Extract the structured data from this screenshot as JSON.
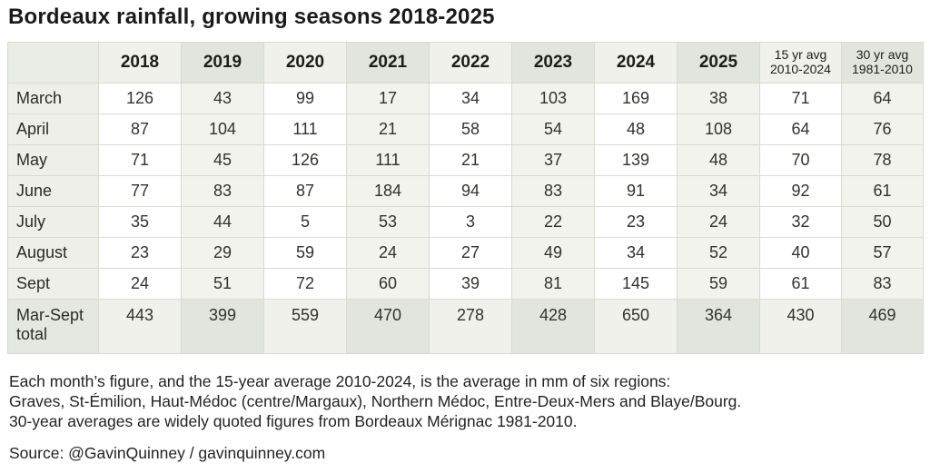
{
  "title": "Bordeaux rainfall, growing seasons 2018-2025",
  "chart_data": {
    "type": "table",
    "title": "Bordeaux rainfall, growing seasons 2018-2025",
    "units": "mm",
    "columns": [
      {
        "label": "",
        "type": "label"
      },
      {
        "label": "2018",
        "type": "year"
      },
      {
        "label": "2019",
        "type": "year"
      },
      {
        "label": "2020",
        "type": "year"
      },
      {
        "label": "2021",
        "type": "year"
      },
      {
        "label": "2022",
        "type": "year"
      },
      {
        "label": "2023",
        "type": "year"
      },
      {
        "label": "2024",
        "type": "year"
      },
      {
        "label": "2025",
        "type": "year"
      },
      {
        "label": "15 yr avg",
        "sublabel": "2010-2024",
        "type": "avg"
      },
      {
        "label": "30 yr avg",
        "sublabel": "1981-2010",
        "type": "avg"
      }
    ],
    "rows": [
      {
        "label": "March",
        "values": [
          126,
          43,
          99,
          17,
          34,
          103,
          169,
          38,
          71,
          64
        ]
      },
      {
        "label": "April",
        "values": [
          87,
          104,
          111,
          21,
          58,
          54,
          48,
          108,
          64,
          76
        ]
      },
      {
        "label": "May",
        "values": [
          71,
          45,
          126,
          111,
          21,
          37,
          139,
          48,
          70,
          78
        ]
      },
      {
        "label": "June",
        "values": [
          77,
          83,
          87,
          184,
          94,
          83,
          91,
          34,
          92,
          61
        ]
      },
      {
        "label": "July",
        "values": [
          35,
          44,
          5,
          53,
          3,
          22,
          23,
          24,
          32,
          50
        ]
      },
      {
        "label": "August",
        "values": [
          23,
          29,
          59,
          24,
          27,
          49,
          34,
          52,
          40,
          57
        ]
      },
      {
        "label": "Sept",
        "values": [
          24,
          51,
          72,
          60,
          39,
          81,
          145,
          59,
          61,
          83
        ]
      },
      {
        "label": "Mar-Sept",
        "label2": "total",
        "total": true,
        "values": [
          443,
          399,
          559,
          470,
          278,
          428,
          650,
          364,
          430,
          469
        ]
      }
    ]
  },
  "footnote": [
    "Each month’s figure, and the 15-year average 2010-2024, is the average in mm of six regions:",
    "Graves, St-Émilion, Haut-Médoc (centre/Margaux), Northern Médoc, Entre-Deux-Mers and Blaye/Bourg.",
    "30-year averages are widely quoted figures from Bordeaux Mérignac 1981-2010."
  ],
  "source": "Source: @GavinQuinney / gavinquinney.com",
  "colors": {
    "header_light": "#eff1ea",
    "header_shade": "#e2e5de",
    "column_tint": "#f1f3ec",
    "label_column": "#edefe8",
    "border": "#d8dad3",
    "text": "#2b2b28"
  }
}
